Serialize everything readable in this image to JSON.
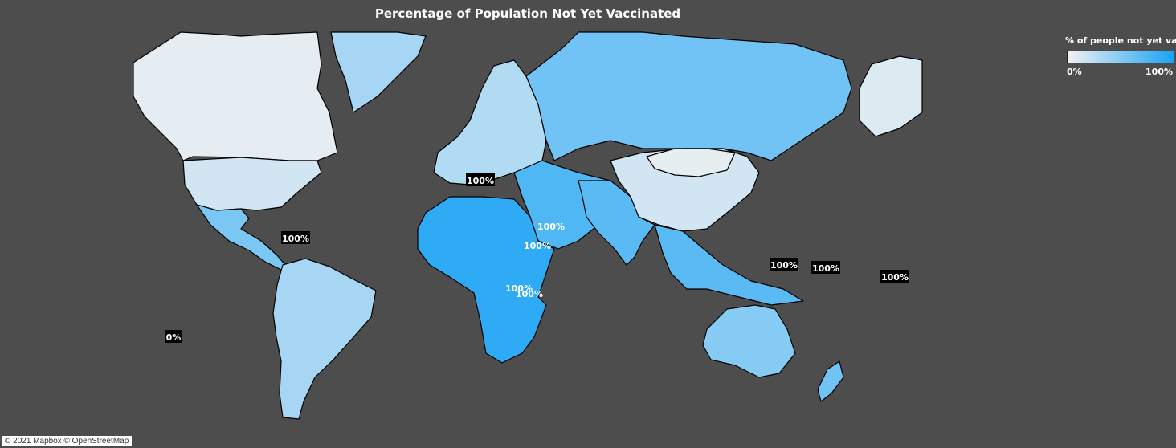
{
  "title": "Percentage of Population Not Yet Vaccinated",
  "legend": {
    "title": "% of people not yet vac..",
    "min_label": "0%",
    "max_label": "100%",
    "color_low": "#f2f2f2",
    "color_high": "#19a3f5"
  },
  "attribution": "© 2021 Mapbox © OpenStreetMap",
  "colors": {
    "background": "#4d4d4d",
    "border": "#000000",
    "label_box": "#000000",
    "label_text": "#ffffff"
  },
  "regions": [
    {
      "name": "north-america",
      "value": 0.06
    },
    {
      "name": "greenland",
      "value": 0.35
    },
    {
      "name": "usa",
      "value": 0.15
    },
    {
      "name": "mexico-central-america",
      "value": 0.55
    },
    {
      "name": "south-america",
      "value": 0.35
    },
    {
      "name": "europe",
      "value": 0.3
    },
    {
      "name": "russia",
      "value": 0.6
    },
    {
      "name": "middle-east",
      "value": 0.75
    },
    {
      "name": "africa",
      "value": 0.9
    },
    {
      "name": "china",
      "value": 0.15
    },
    {
      "name": "mongolia",
      "value": 0.05
    },
    {
      "name": "india-south-asia",
      "value": 0.7
    },
    {
      "name": "southeast-asia",
      "value": 0.7
    },
    {
      "name": "australia",
      "value": 0.5
    },
    {
      "name": "new-zealand",
      "value": 0.6
    },
    {
      "name": "alaska",
      "value": 0.1
    }
  ],
  "value_labels": [
    {
      "text": "100%",
      "boxed": true
    },
    {
      "text": "100%",
      "boxed": true
    },
    {
      "text": "100%",
      "boxed": false
    },
    {
      "text": "100%",
      "boxed": false
    },
    {
      "text": "100%",
      "boxed": false
    },
    {
      "text": "100%",
      "boxed": false
    },
    {
      "text": "0%",
      "boxed": true
    },
    {
      "text": "100%",
      "boxed": true
    },
    {
      "text": "100%",
      "boxed": true
    },
    {
      "text": "100%",
      "boxed": true
    }
  ]
}
